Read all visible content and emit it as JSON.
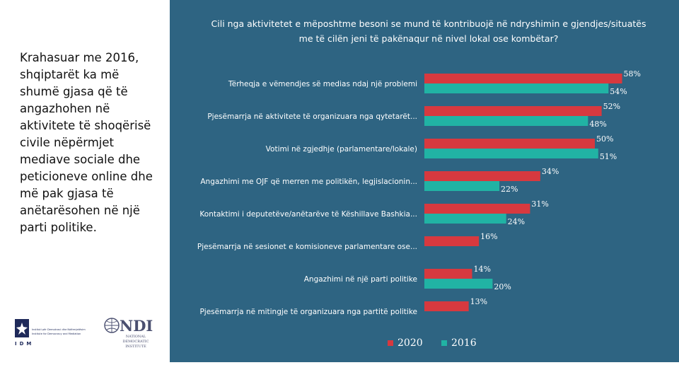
{
  "left_text": "Krahasuar me 2016, shqiptarët ka më shumë gjasa që të angazhohen në aktivitete të shoqërisë civile nëpërmjet mediave sociale dhe peticioneve online dhe më pak gjasa të anëtarësohen në një parti politike.",
  "logos": {
    "idm_letters": "IDM",
    "idm_lines": [
      "Instituti për Demokraci dhe Ndërmjetësim",
      "Institute for Democracy and Mediation"
    ],
    "ndi_letters": "NDI",
    "ndi_lines": [
      "NATIONAL",
      "DEMOCRATIC",
      "INSTITUTE"
    ]
  },
  "colors": {
    "panel": "#2e6482",
    "series_2020": "#d7393f",
    "series_2016": "#21b3a4"
  },
  "chart_data": {
    "type": "bar",
    "orientation": "horizontal",
    "title": "Cili nga aktivitetet e mëposhtme besoni se mund të kontribuojë në ndryshimin e gjendjes/situatës me të cilën jeni të pakënaqur në nivel lokal ose kombëtar?",
    "categories": [
      "Tërheqja e vëmendjes së medias ndaj një problemi",
      "Pjesëmarrja në aktivitete të organizuara nga qytetarët...",
      "Votimi në zgjedhje (parlamentare/lokale)",
      "Angazhimi me OJF që merren me politikën, legjislacionin...",
      "Kontaktimi i deputetëve/anëtarëve të Këshillave Bashkia...",
      "Pjesëmarrja në sesionet e komisioneve parlamentare ose...",
      "Angazhimi në një parti politike",
      "Pjesëmarrja në mitingje të organizuara nga partitë politike"
    ],
    "series": [
      {
        "name": "2020",
        "color": "#d7393f",
        "values": [
          58,
          52,
          50,
          34,
          31,
          16,
          14,
          13
        ],
        "labels": [
          "58%",
          "52%",
          "50%",
          "34%",
          "31%",
          "16%",
          "14%",
          "13%"
        ]
      },
      {
        "name": "2016",
        "color": "#21b3a4",
        "values": [
          54,
          48,
          51,
          22,
          24,
          null,
          20,
          null
        ],
        "labels": [
          "54%",
          "48%",
          "51%",
          "22%",
          "24%",
          "",
          "20%",
          ""
        ]
      }
    ],
    "xlim": [
      0,
      60
    ],
    "legend": [
      "2020",
      "2016"
    ],
    "legend_position": "bottom",
    "grid": false
  }
}
